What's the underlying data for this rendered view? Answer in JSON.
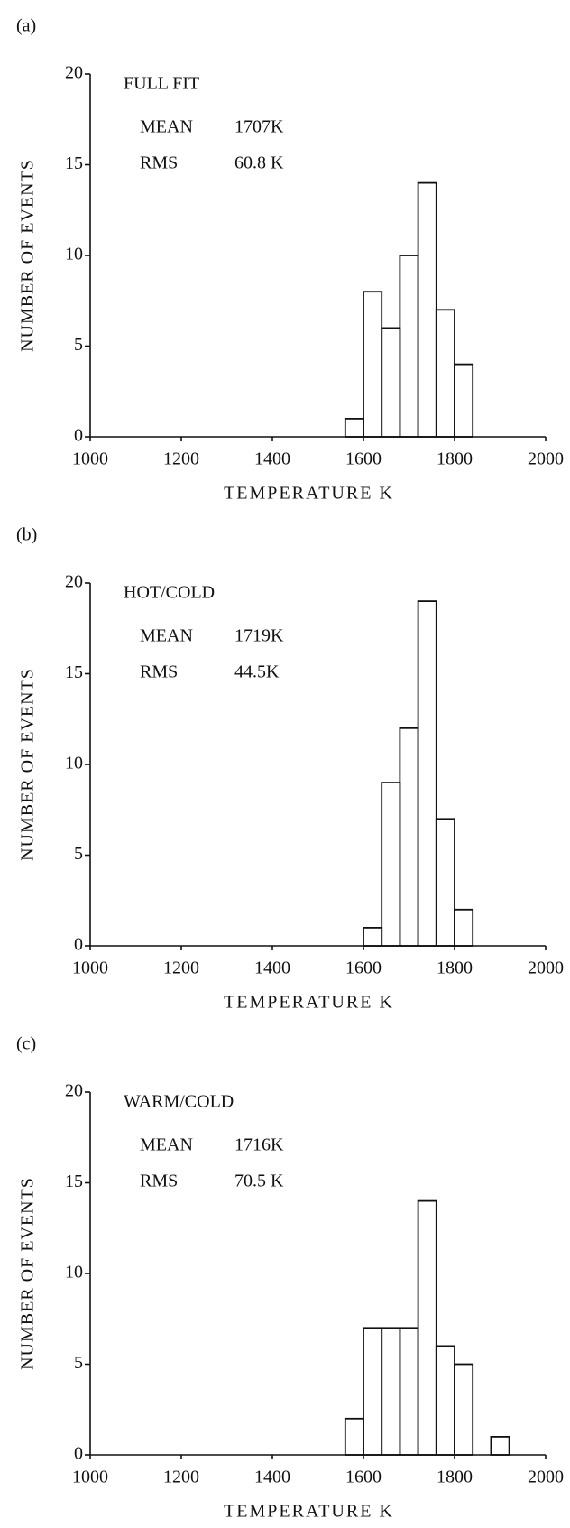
{
  "chart_data": [
    {
      "type": "histogram",
      "panel": "(a)",
      "title": "FULL FIT",
      "annotations": [
        "MEAN",
        "1707K",
        "RMS",
        "60.8 K"
      ],
      "xlabel": "TEMPERATURE K",
      "ylabel": "NUMBER OF EVENTS",
      "bins": [
        1560,
        1600,
        1640,
        1680,
        1720,
        1760,
        1800,
        1840
      ],
      "counts": [
        1,
        8,
        6,
        10,
        14,
        7,
        4
      ],
      "xlim": [
        1000,
        2000
      ],
      "xticks": [
        1000,
        1200,
        1400,
        1600,
        1800,
        2000
      ],
      "ylim": [
        0,
        20
      ],
      "yticks": [
        0,
        5,
        10,
        15,
        20
      ],
      "color": "#111111"
    },
    {
      "type": "histogram",
      "panel": "(b)",
      "title": "HOT/COLD",
      "annotations": [
        "MEAN",
        "1719K",
        "RMS",
        "44.5K"
      ],
      "xlabel": "TEMPERATURE K",
      "ylabel": "NUMBER OF EVENTS",
      "bins": [
        1600,
        1640,
        1680,
        1720,
        1760,
        1800,
        1840
      ],
      "counts": [
        1,
        9,
        12,
        19,
        7,
        2
      ],
      "xlim": [
        1000,
        2000
      ],
      "xticks": [
        1000,
        1200,
        1400,
        1600,
        1800,
        2000
      ],
      "ylim": [
        0,
        20
      ],
      "yticks": [
        0,
        5,
        10,
        15,
        20
      ],
      "color": "#111111"
    },
    {
      "type": "histogram",
      "panel": "(c)",
      "title": "WARM/COLD",
      "annotations": [
        "MEAN",
        "1716K",
        "RMS",
        "70.5 K"
      ],
      "xlabel": "TEMPERATURE K",
      "ylabel": "NUMBER OF EVENTS",
      "bins": [
        1560,
        1600,
        1640,
        1680,
        1720,
        1760,
        1800,
        1840,
        1880,
        1920
      ],
      "counts": [
        2,
        7,
        7,
        7,
        14,
        6,
        5,
        0,
        1
      ],
      "xlim": [
        1000,
        2000
      ],
      "xticks": [
        1000,
        1200,
        1400,
        1600,
        1800,
        2000
      ],
      "ylim": [
        0,
        20
      ],
      "yticks": [
        0,
        5,
        10,
        15,
        20
      ],
      "color": "#111111"
    }
  ]
}
